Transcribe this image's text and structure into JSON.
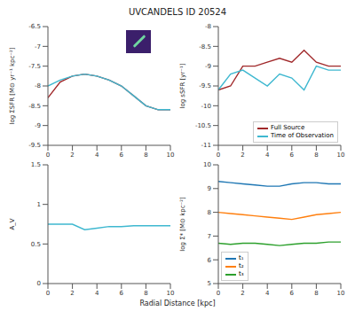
{
  "title": "UVCANDELS ID 20524",
  "x_label": "Radial Distance [kpc]",
  "chart_data": [
    {
      "type": "line",
      "y_label": "log ΣSFR [M⊙ yr⁻¹ kpc⁻²]",
      "x": [
        0,
        1,
        2,
        3,
        4,
        5,
        6,
        7,
        8,
        9,
        10
      ],
      "xlim": [
        0,
        10
      ],
      "xticks": [
        0,
        2,
        4,
        6,
        8,
        10
      ],
      "ylim": [
        -9.5,
        -6.5
      ],
      "yticks": [
        -9.5,
        -9,
        -8.5,
        -8,
        -7.5,
        -7,
        -6.5
      ],
      "series": [
        {
          "name": "Full Source",
          "color": "#a0282a",
          "values": [
            -8.3,
            -7.9,
            -7.75,
            -7.7,
            -7.75,
            -7.85,
            -8.0,
            -8.25,
            -8.5,
            -8.6,
            -8.6
          ]
        },
        {
          "name": "Time of Observation",
          "color": "#3fb8d0",
          "values": [
            -8.0,
            -7.85,
            -7.75,
            -7.7,
            -7.75,
            -7.85,
            -8.0,
            -8.25,
            -8.5,
            -8.6,
            -8.6
          ]
        }
      ]
    },
    {
      "type": "line",
      "y_label": "log sSFR [yr⁻¹]",
      "x": [
        0,
        1,
        2,
        3,
        4,
        5,
        6,
        7,
        8,
        9,
        10
      ],
      "xlim": [
        0,
        10
      ],
      "xticks": [
        0,
        2,
        4,
        6,
        8,
        10
      ],
      "ylim": [
        -11,
        -8
      ],
      "yticks": [
        -11,
        -10.5,
        -10,
        -9.5,
        -9,
        -8.5,
        -8
      ],
      "legend": "lower right",
      "series": [
        {
          "name": "Full Source",
          "color": "#a0282a",
          "values": [
            -9.6,
            -9.5,
            -9.0,
            -9.0,
            -8.9,
            -8.8,
            -8.9,
            -8.6,
            -8.9,
            -9.0,
            -9.0
          ]
        },
        {
          "name": "Time of Observation",
          "color": "#3fb8d0",
          "values": [
            -9.6,
            -9.2,
            -9.1,
            -9.3,
            -9.5,
            -9.2,
            -9.3,
            -9.6,
            -9.0,
            -9.1,
            -9.1
          ]
        }
      ]
    },
    {
      "type": "line",
      "y_label": "A_V",
      "x": [
        0,
        1,
        2,
        3,
        4,
        5,
        6,
        7,
        8,
        9,
        10
      ],
      "xlim": [
        0,
        10
      ],
      "xticks": [
        0,
        2,
        4,
        6,
        8,
        10
      ],
      "ylim": [
        0,
        1.5
      ],
      "yticks": [
        0,
        0.5,
        1,
        1.5
      ],
      "series": [
        {
          "name": "A_V",
          "color": "#3fb8d0",
          "values": [
            0.75,
            0.75,
            0.75,
            0.68,
            0.7,
            0.72,
            0.72,
            0.73,
            0.73,
            0.73,
            0.73
          ]
        }
      ]
    },
    {
      "type": "line",
      "y_label": "log Σ* [M⊙ kpc⁻²]",
      "x": [
        0,
        1,
        2,
        3,
        4,
        5,
        6,
        7,
        8,
        9,
        10
      ],
      "xlim": [
        0,
        10
      ],
      "xticks": [
        0,
        2,
        4,
        6,
        8,
        10
      ],
      "ylim": [
        5,
        10
      ],
      "yticks": [
        5,
        6,
        7,
        8,
        9,
        10
      ],
      "legend": "lower left",
      "series": [
        {
          "name": "t₁",
          "color": "#1f77b4",
          "values": [
            9.3,
            9.25,
            9.2,
            9.15,
            9.1,
            9.1,
            9.2,
            9.25,
            9.25,
            9.2,
            9.2
          ]
        },
        {
          "name": "t₂",
          "color": "#ff7f0e",
          "values": [
            8.0,
            7.95,
            7.9,
            7.85,
            7.8,
            7.75,
            7.7,
            7.8,
            7.9,
            7.95,
            8.0
          ]
        },
        {
          "name": "t₃",
          "color": "#2ca02c",
          "values": [
            6.7,
            6.65,
            6.7,
            6.7,
            6.65,
            6.6,
            6.65,
            6.7,
            6.7,
            6.75,
            6.75
          ]
        }
      ]
    }
  ]
}
